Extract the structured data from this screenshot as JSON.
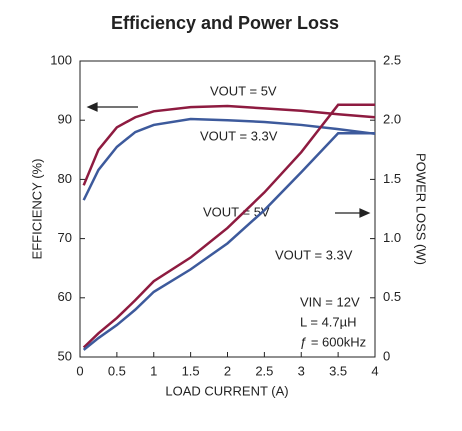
{
  "chart_data": {
    "type": "line",
    "title": "Efficiency and Power Loss",
    "x_label": "LOAD CURRENT (A)",
    "y_label": "EFFICIENCY (%)",
    "y2_label": "POWER LOSS (W)",
    "x": [
      0.05,
      0.25,
      0.5,
      0.75,
      1,
      1.5,
      2,
      2.5,
      3,
      3.5,
      4
    ],
    "xlim": [
      0,
      4
    ],
    "xticks": [
      0,
      0.5,
      1,
      1.5,
      2,
      2.5,
      3,
      3.5,
      4
    ],
    "ylim": [
      50,
      100
    ],
    "yticks": [
      50,
      60,
      70,
      80,
      90,
      100
    ],
    "y2lim": [
      0,
      2.5
    ],
    "y2ticks": [
      0,
      0.5,
      {
        "value": 1,
        "label": "1.0"
      },
      1.5,
      {
        "value": 2,
        "label": "2.0"
      },
      2.5
    ],
    "grid": false,
    "series": [
      {
        "name": "Efficiency VOUT = 5V",
        "color": "#8e1b40",
        "values": [
          79,
          85,
          88.8,
          90.5,
          91.5,
          92.2,
          92.4,
          92,
          91.6,
          91,
          90.5
        ]
      },
      {
        "name": "Efficiency VOUT = 3.3V",
        "color": "#3d5a9c",
        "values": [
          76.5,
          81.6,
          85.5,
          88,
          89.2,
          90.2,
          90,
          89.7,
          89.2,
          88.5,
          87.7
        ]
      },
      {
        "name": "Power Loss VOUT = 5V",
        "color": "#8e1b40",
        "axis": "y2",
        "values": [
          0.08,
          0.2,
          0.33,
          0.48,
          0.64,
          0.84,
          1.09,
          1.39,
          1.73,
          2.13,
          2.13
        ]
      },
      {
        "name": "Power Loss VOUT = 3.3V",
        "color": "#3d5a9c",
        "axis": "y2",
        "values": [
          0.06,
          0.16,
          0.27,
          0.4,
          0.55,
          0.74,
          0.96,
          1.24,
          1.56,
          1.89,
          1.89
        ]
      }
    ],
    "annotations": [
      "VOUT = 5V",
      "VOUT = 3.3V",
      "VOUT = 5V",
      "VOUT = 3.3V",
      "VIN = 12V",
      "L = 4.7µH",
      "ƒ = 600kHz"
    ]
  }
}
